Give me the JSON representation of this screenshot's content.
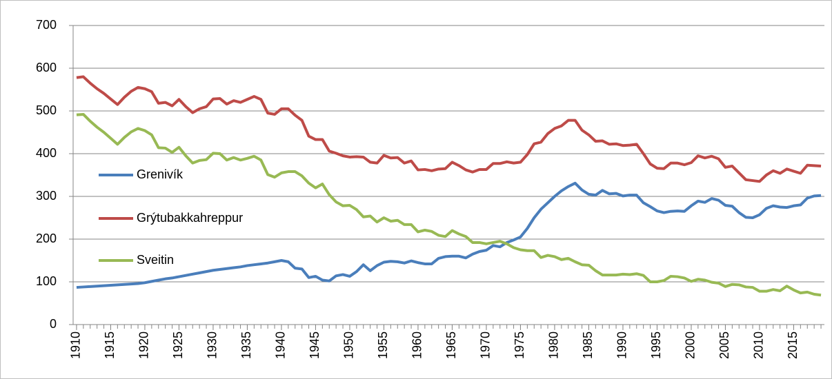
{
  "chart_data": {
    "type": "line",
    "x": [
      1910,
      1911,
      1912,
      1913,
      1914,
      1915,
      1916,
      1917,
      1918,
      1919,
      1920,
      1921,
      1922,
      1923,
      1924,
      1925,
      1926,
      1927,
      1928,
      1929,
      1930,
      1931,
      1932,
      1933,
      1934,
      1935,
      1936,
      1937,
      1938,
      1939,
      1940,
      1941,
      1942,
      1943,
      1944,
      1945,
      1946,
      1947,
      1948,
      1949,
      1950,
      1951,
      1952,
      1953,
      1954,
      1955,
      1956,
      1957,
      1958,
      1959,
      1960,
      1961,
      1962,
      1963,
      1964,
      1965,
      1966,
      1967,
      1968,
      1969,
      1970,
      1971,
      1972,
      1973,
      1974,
      1975,
      1976,
      1977,
      1978,
      1979,
      1980,
      1981,
      1982,
      1983,
      1984,
      1985,
      1986,
      1987,
      1988,
      1989,
      1990,
      1991,
      1992,
      1993,
      1994,
      1995,
      1996,
      1997,
      1998,
      1999,
      2000,
      2001,
      2002,
      2003,
      2004,
      2005,
      2006,
      2007,
      2008,
      2009,
      2010,
      2011,
      2012,
      2013,
      2014,
      2015,
      2016,
      2017,
      2018,
      2019
    ],
    "series": [
      {
        "name": "Grenivík",
        "color": "#4a7ebb",
        "values": [
          87,
          88,
          89,
          90,
          91,
          92,
          93,
          94,
          95,
          96,
          98,
          101,
          104,
          107,
          109,
          112,
          115,
          118,
          121,
          124,
          127,
          129,
          131,
          133,
          135,
          138,
          140,
          142,
          144,
          147,
          150,
          147,
          132,
          130,
          110,
          113,
          104,
          102,
          114,
          117,
          113,
          124,
          140,
          126,
          138,
          146,
          148,
          147,
          144,
          149,
          145,
          142,
          142,
          155,
          159,
          160,
          160,
          156,
          165,
          171,
          174,
          185,
          182,
          192,
          198,
          205,
          225,
          250,
          270,
          285,
          300,
          313,
          323,
          331,
          315,
          305,
          303,
          314,
          306,
          307,
          301,
          303,
          303,
          285,
          276,
          266,
          262,
          265,
          266,
          265,
          278,
          289,
          286,
          295,
          291,
          279,
          277,
          262,
          251,
          250,
          257,
          272,
          278,
          275,
          274,
          278,
          280,
          296,
          301,
          302
        ]
      },
      {
        "name": "Grýtubakkahreppur",
        "color": "#be4b48",
        "values": [
          578,
          580,
          565,
          552,
          541,
          528,
          515,
          532,
          546,
          555,
          552,
          545,
          518,
          520,
          512,
          527,
          510,
          496,
          505,
          510,
          528,
          529,
          516,
          524,
          520,
          527,
          534,
          527,
          495,
          492,
          505,
          505,
          490,
          478,
          441,
          433,
          433,
          406,
          401,
          395,
          392,
          393,
          392,
          380,
          378,
          396,
          390,
          391,
          378,
          383,
          362,
          363,
          360,
          364,
          365,
          380,
          372,
          362,
          357,
          363,
          363,
          377,
          377,
          381,
          378,
          380,
          398,
          423,
          427,
          447,
          459,
          465,
          478,
          478,
          455,
          444,
          429,
          430,
          422,
          423,
          419,
          420,
          422,
          400,
          376,
          366,
          365,
          378,
          378,
          374,
          379,
          395,
          390,
          394,
          388,
          368,
          371,
          355,
          339,
          337,
          335,
          350,
          360,
          354,
          364,
          359,
          354,
          373,
          372,
          371
        ]
      },
      {
        "name": "Sveitin",
        "color": "#98b954",
        "values": [
          491,
          492,
          476,
          462,
          450,
          436,
          422,
          438,
          451,
          459,
          454,
          444,
          414,
          413,
          403,
          415,
          395,
          378,
          384,
          386,
          401,
          400,
          385,
          391,
          385,
          389,
          394,
          385,
          351,
          345,
          355,
          358,
          358,
          348,
          331,
          320,
          329,
          304,
          287,
          278,
          279,
          269,
          252,
          254,
          240,
          250,
          242,
          244,
          234,
          234,
          217,
          221,
          218,
          209,
          206,
          220,
          212,
          206,
          192,
          192,
          189,
          192,
          195,
          189,
          180,
          175,
          173,
          173,
          157,
          162,
          159,
          152,
          155,
          147,
          140,
          139,
          126,
          116,
          116,
          116,
          118,
          117,
          119,
          115,
          100,
          100,
          103,
          113,
          112,
          109,
          101,
          106,
          104,
          99,
          97,
          89,
          94,
          93,
          88,
          87,
          78,
          78,
          82,
          79,
          90,
          81,
          74,
          76,
          71,
          69
        ]
      }
    ],
    "xlim": [
      1909.5,
      2019.5
    ],
    "xticks": [
      1910,
      1915,
      1920,
      1925,
      1930,
      1935,
      1940,
      1945,
      1950,
      1955,
      1960,
      1965,
      1970,
      1975,
      1980,
      1985,
      1990,
      1995,
      2000,
      2005,
      2010,
      2015
    ],
    "ylim": [
      0,
      700
    ],
    "yticks": [
      0,
      100,
      200,
      300,
      400,
      500,
      600,
      700
    ],
    "grid": true
  }
}
